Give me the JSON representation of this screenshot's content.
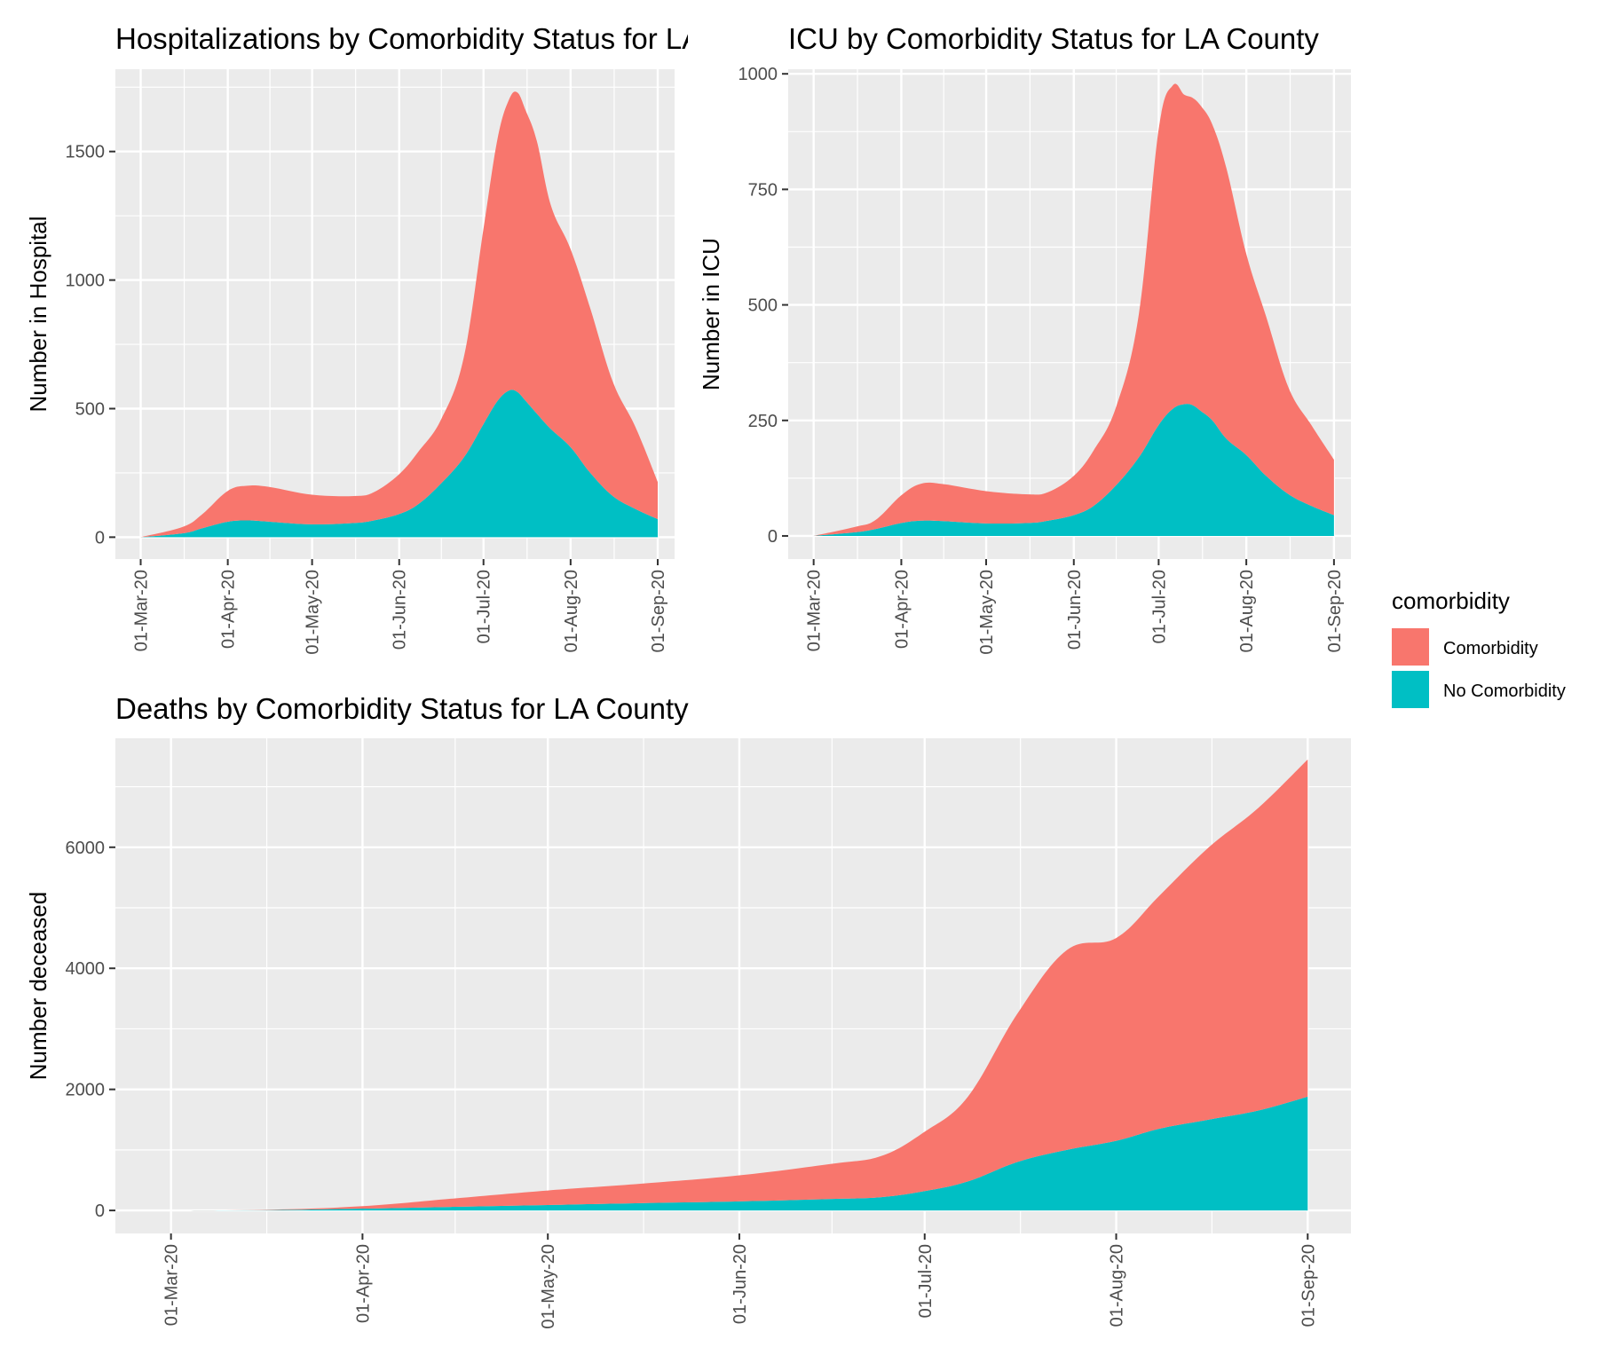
{
  "colors": {
    "comorbidity": "#F8766D",
    "no_comorbidity": "#00BFC4",
    "panel_bg": "#EBEBEB",
    "grid": "#FFFFFF"
  },
  "legend": {
    "title": "comorbidity",
    "items": [
      {
        "label": "Comorbidity",
        "color": "#F8766D"
      },
      {
        "label": "No Comorbidity",
        "color": "#00BFC4"
      }
    ]
  },
  "chart_data": [
    {
      "id": "hospital",
      "type": "area",
      "stacked": true,
      "title": "Hospitalizations by Comorbidity Status for LA County",
      "xlabel": "",
      "ylabel": "Number in Hospital",
      "x": [
        "2020-03-01",
        "2020-03-16",
        "2020-03-23",
        "2020-04-01",
        "2020-04-08",
        "2020-04-16",
        "2020-05-01",
        "2020-05-16",
        "2020-05-23",
        "2020-06-01",
        "2020-06-08",
        "2020-06-16",
        "2020-06-24",
        "2020-07-01",
        "2020-07-06",
        "2020-07-10",
        "2020-07-13",
        "2020-07-16",
        "2020-07-20",
        "2020-07-25",
        "2020-08-01",
        "2020-08-08",
        "2020-08-16",
        "2020-08-24",
        "2020-09-01"
      ],
      "xtick_labels": [
        "01-Mar-20",
        "01-Apr-20",
        "01-May-20",
        "01-Jun-20",
        "01-Jul-20",
        "01-Aug-20",
        "01-Sep-20"
      ],
      "xtick_dates": [
        "2020-03-01",
        "2020-04-01",
        "2020-05-01",
        "2020-06-01",
        "2020-07-01",
        "2020-08-01",
        "2020-09-01"
      ],
      "ylim": [
        -85,
        1820
      ],
      "yticks": [
        0,
        500,
        1000,
        1500
      ],
      "series": [
        {
          "name": "No Comorbidity",
          "values": [
            0,
            15,
            35,
            60,
            65,
            60,
            50,
            55,
            65,
            90,
            130,
            210,
            310,
            440,
            530,
            570,
            565,
            530,
            480,
            420,
            350,
            250,
            160,
            110,
            70
          ]
        },
        {
          "name": "Comorbidity",
          "values": [
            0,
            25,
            55,
            120,
            135,
            135,
            115,
            105,
            110,
            155,
            205,
            250,
            390,
            760,
            1020,
            1130,
            1165,
            1130,
            1060,
            870,
            770,
            640,
            445,
            320,
            145
          ]
        }
      ]
    },
    {
      "id": "icu",
      "type": "area",
      "stacked": true,
      "title": "ICU by Comorbidity Status for LA County",
      "xlabel": "",
      "ylabel": "Number in ICU",
      "x": [
        "2020-03-01",
        "2020-03-16",
        "2020-03-23",
        "2020-04-01",
        "2020-04-08",
        "2020-04-16",
        "2020-05-01",
        "2020-05-16",
        "2020-05-23",
        "2020-06-01",
        "2020-06-08",
        "2020-06-16",
        "2020-06-24",
        "2020-07-01",
        "2020-07-06",
        "2020-07-10",
        "2020-07-13",
        "2020-07-16",
        "2020-07-20",
        "2020-07-25",
        "2020-08-01",
        "2020-08-08",
        "2020-08-16",
        "2020-08-24",
        "2020-09-01"
      ],
      "xtick_labels": [
        "01-Mar-20",
        "01-Apr-20",
        "01-May-20",
        "01-Jun-20",
        "01-Jul-20",
        "01-Aug-20",
        "01-Sep-20"
      ],
      "xtick_dates": [
        "2020-03-01",
        "2020-04-01",
        "2020-05-01",
        "2020-06-01",
        "2020-07-01",
        "2020-08-01",
        "2020-09-01"
      ],
      "ylim": [
        -50,
        1010
      ],
      "yticks": [
        0,
        250,
        500,
        750,
        1000
      ],
      "series": [
        {
          "name": "No Comorbidity",
          "values": [
            0,
            8,
            15,
            28,
            33,
            32,
            27,
            28,
            33,
            45,
            65,
            110,
            170,
            240,
            275,
            285,
            283,
            270,
            250,
            210,
            175,
            130,
            90,
            65,
            45
          ]
        },
        {
          "name": "Comorbidity",
          "values": [
            0,
            12,
            20,
            60,
            80,
            80,
            70,
            62,
            62,
            85,
            120,
            170,
            310,
            640,
            700,
            670,
            665,
            660,
            640,
            585,
            435,
            345,
            230,
            175,
            120
          ]
        }
      ]
    },
    {
      "id": "deaths",
      "type": "area",
      "stacked": true,
      "title": "Deaths by Comorbidity Status for LA County",
      "xlabel": "",
      "ylabel": "Number deceased",
      "x": [
        "2020-03-01",
        "2020-03-16",
        "2020-04-01",
        "2020-04-16",
        "2020-05-01",
        "2020-05-16",
        "2020-06-01",
        "2020-06-16",
        "2020-06-24",
        "2020-07-01",
        "2020-07-08",
        "2020-07-16",
        "2020-07-24",
        "2020-08-01",
        "2020-08-08",
        "2020-08-16",
        "2020-08-24",
        "2020-09-01"
      ],
      "xtick_labels": [
        "01-Mar-20",
        "01-Apr-20",
        "01-May-20",
        "01-Jun-20",
        "01-Jul-20",
        "01-Aug-20",
        "01-Sep-20"
      ],
      "xtick_dates": [
        "2020-03-01",
        "2020-04-01",
        "2020-05-01",
        "2020-06-01",
        "2020-07-01",
        "2020-08-01",
        "2020-09-01"
      ],
      "ylim": [
        -380,
        7800
      ],
      "yticks": [
        0,
        2000,
        4000,
        6000
      ],
      "series": [
        {
          "name": "No Comorbidity",
          "values": [
            0,
            5,
            30,
            60,
            90,
            120,
            150,
            190,
            220,
            320,
            480,
            800,
            1000,
            1150,
            1350,
            1500,
            1650,
            1880
          ]
        },
        {
          "name": "Comorbidity",
          "values": [
            0,
            5,
            40,
            140,
            240,
            320,
            430,
            580,
            680,
            980,
            1400,
            2450,
            3300,
            3350,
            3850,
            4500,
            5000,
            5570
          ]
        }
      ]
    }
  ]
}
